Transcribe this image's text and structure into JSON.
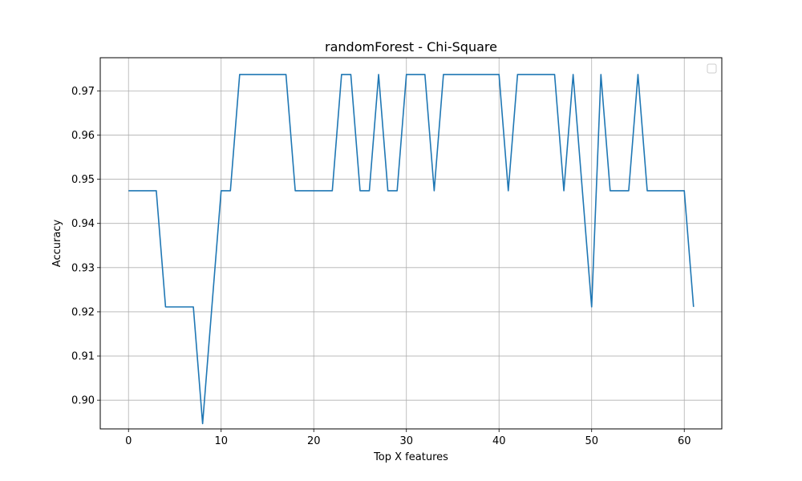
{
  "chart_data": {
    "type": "line",
    "title": "randomForest - Chi-Square",
    "xlabel": "Top X features",
    "ylabel": "Accuracy",
    "xlim": [
      -3.05,
      64.05
    ],
    "ylim": [
      0.8935,
      0.9775
    ],
    "xticks": [
      0,
      10,
      20,
      30,
      40,
      50,
      60
    ],
    "yticks": [
      0.9,
      0.91,
      0.92,
      0.93,
      0.94,
      0.95,
      0.96,
      0.97
    ],
    "xtick_labels": [
      "0",
      "10",
      "20",
      "30",
      "40",
      "50",
      "60"
    ],
    "ytick_labels": [
      "0.90",
      "0.91",
      "0.92",
      "0.93",
      "0.94",
      "0.95",
      "0.96",
      "0.97"
    ],
    "grid": true,
    "legend": {
      "placement": "upper-right",
      "entries": []
    },
    "series": [
      {
        "color": "#1f77b4",
        "x": [
          0,
          1,
          2,
          3,
          4,
          5,
          6,
          7,
          8,
          9,
          10,
          11,
          12,
          13,
          14,
          15,
          16,
          17,
          18,
          19,
          20,
          21,
          22,
          23,
          24,
          25,
          26,
          27,
          28,
          29,
          30,
          31,
          32,
          33,
          34,
          35,
          36,
          37,
          38,
          39,
          40,
          41,
          42,
          43,
          44,
          45,
          46,
          47,
          48,
          49,
          50,
          51,
          52,
          53,
          54,
          55,
          56,
          57,
          58,
          59,
          60,
          61
        ],
        "values": [
          0.9474,
          0.9474,
          0.9474,
          0.9474,
          0.9211,
          0.9211,
          0.9211,
          0.9211,
          0.8947,
          0.9211,
          0.9474,
          0.9474,
          0.9737,
          0.9737,
          0.9737,
          0.9737,
          0.9737,
          0.9737,
          0.9474,
          0.9474,
          0.9474,
          0.9474,
          0.9474,
          0.9737,
          0.9737,
          0.9474,
          0.9474,
          0.9737,
          0.9474,
          0.9474,
          0.9737,
          0.9737,
          0.9737,
          0.9474,
          0.9737,
          0.9737,
          0.9737,
          0.9737,
          0.9737,
          0.9737,
          0.9737,
          0.9474,
          0.9737,
          0.9737,
          0.9737,
          0.9737,
          0.9737,
          0.9474,
          0.9737,
          0.9474,
          0.9211,
          0.9737,
          0.9474,
          0.9474,
          0.9474,
          0.9737,
          0.9474,
          0.9474,
          0.9474,
          0.9474,
          0.9474,
          0.9211
        ]
      }
    ]
  }
}
